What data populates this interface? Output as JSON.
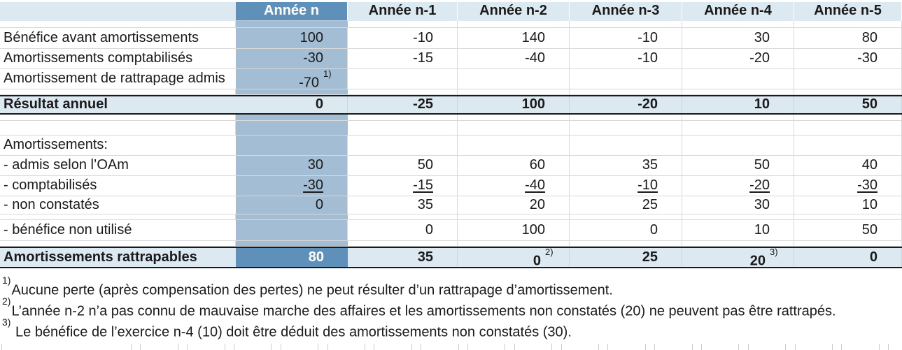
{
  "colors": {
    "accent_dark_blue": "#5F90BA",
    "accent_medium_blue": "#A2BDD4",
    "accent_light_blue": "#DCE9F1",
    "grid_line": "#D9D9D9",
    "border_black": "#1A1A1A"
  },
  "table": {
    "header_cols": [
      "Année n",
      "Année n-1",
      "Année n-2",
      "Année n-3",
      "Année n-4",
      "Année n-5"
    ],
    "rows": [
      {
        "kind": "gap_s"
      },
      {
        "kind": "data_tall",
        "label": "Bénéfice avant amortissements",
        "values": [
          "100",
          "-10",
          "140",
          "-10",
          "30",
          "80"
        ]
      },
      {
        "kind": "data",
        "label": "Amortissements comptabilisés",
        "values": [
          "-30",
          "-15",
          "-40",
          "-10",
          "-20",
          "-30"
        ]
      },
      {
        "kind": "data",
        "label": "Amortissement de rattrapage admis",
        "values": [
          {
            "v": "-70",
            "ref": "1)"
          },
          "",
          "",
          "",
          "",
          ""
        ]
      },
      {
        "kind": "gap_xs"
      },
      {
        "kind": "result",
        "label": "Résultat annuel",
        "values": [
          "0",
          "-25",
          "100",
          "-20",
          "10",
          "50"
        ]
      },
      {
        "kind": "gap_m"
      },
      {
        "kind": "empty"
      },
      {
        "kind": "data",
        "label": "Amortissements:",
        "values": [
          "",
          "",
          "",
          "",
          "",
          ""
        ]
      },
      {
        "kind": "data",
        "label": "- admis selon l’OAm",
        "values": [
          "30",
          "50",
          "60",
          "35",
          "50",
          "40"
        ]
      },
      {
        "kind": "sum",
        "label": "- comptabilisés",
        "values": [
          "-30",
          "-15",
          "-40",
          "-10",
          "-20",
          "-30"
        ]
      },
      {
        "kind": "data_short",
        "label": "- non constatés",
        "values": [
          "0",
          "35",
          "20",
          "25",
          "30",
          "10"
        ]
      },
      {
        "kind": "gap_xs"
      },
      {
        "kind": "data_tall",
        "label": "- bénéfice non utilisé",
        "values": [
          "",
          "0",
          "100",
          "0",
          "10",
          "50"
        ]
      },
      {
        "kind": "gap_xs"
      },
      {
        "kind": "total",
        "label": "Amortissements rattrapables",
        "values": [
          {
            "v": "80"
          },
          "35",
          {
            "v": "0",
            "ref": "2)"
          },
          "25",
          {
            "v": "20",
            "ref": "3)"
          },
          "0"
        ]
      }
    ]
  },
  "footnotes": [
    {
      "ref": "1)",
      "text": "Aucune perte (après compensation des pertes) ne peut résulter d’un rattrapage d’amortissement."
    },
    {
      "ref": "2)",
      "text": "L’année n-2 n’a pas connu de mauvaise marche des affaires et les amortissements non constatés (20) ne peuvent pas être rattrapés."
    },
    {
      "ref": "3)",
      "text": " Le bénéfice de l’exercice n-4 (10) doit être déduit des amortissements non constatés (30)."
    }
  ]
}
